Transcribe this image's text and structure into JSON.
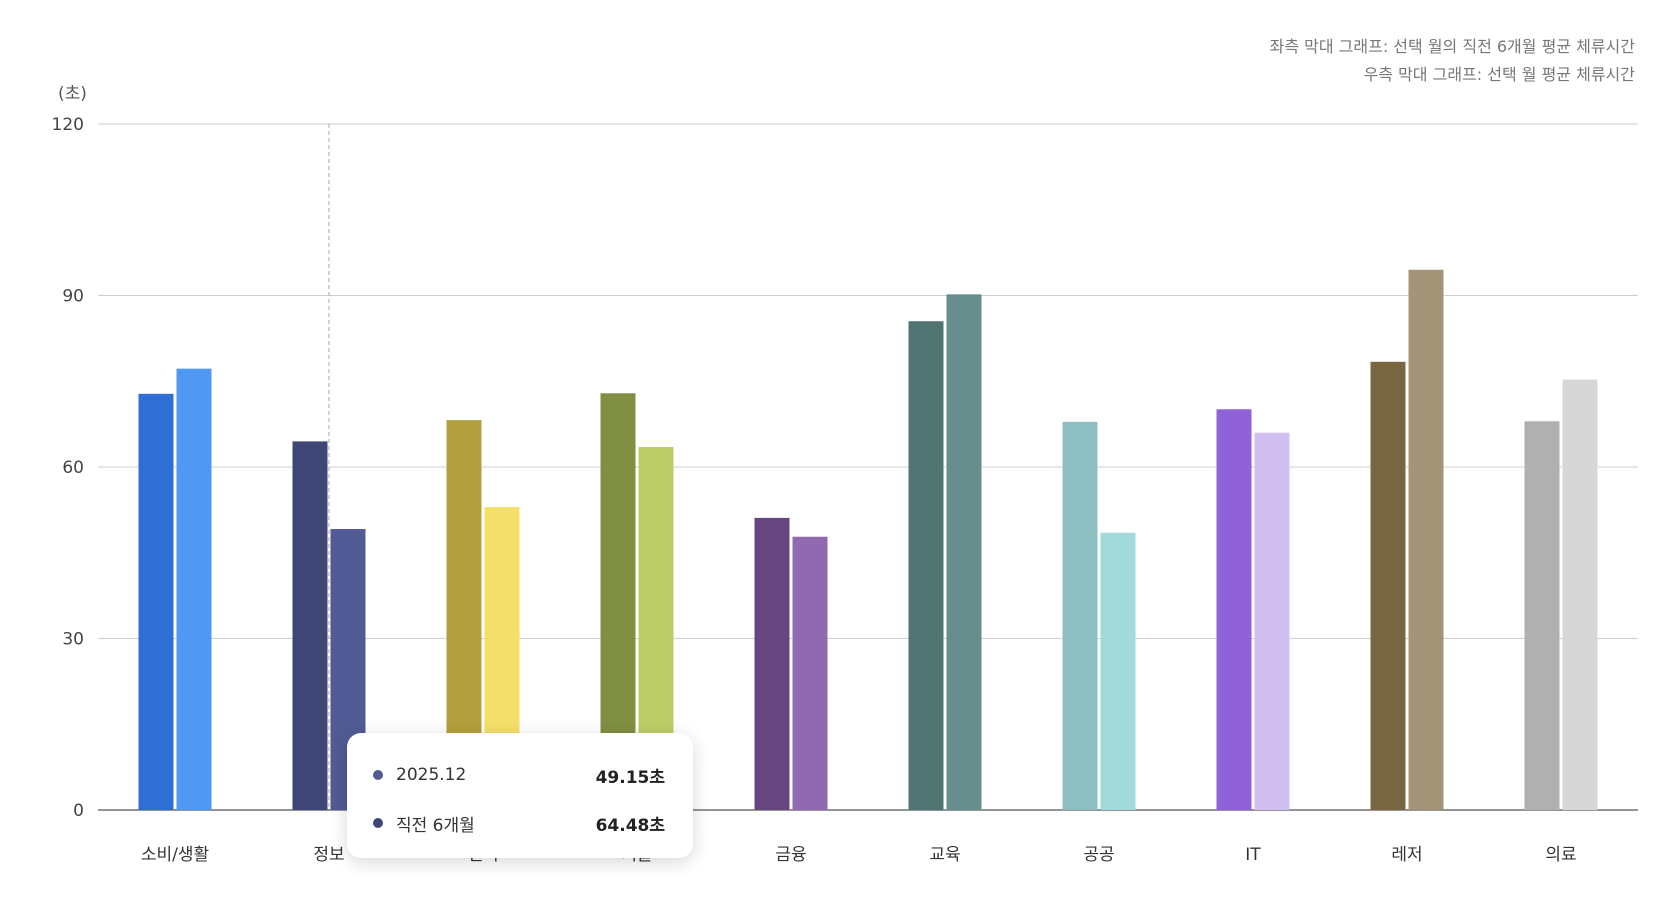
{
  "chart_data": {
    "type": "bar",
    "y_unit_label": "(초)",
    "ylim": [
      0,
      120
    ],
    "yticks": [
      0,
      30,
      60,
      90,
      120
    ],
    "grid": true,
    "categories": [
      "소비/생활",
      "정보",
      "엔터",
      "기술",
      "금융",
      "교육",
      "공공",
      "IT",
      "레저",
      "의료"
    ],
    "series": [
      {
        "name": "직전 6개월",
        "values": [
          72.8,
          64.48,
          68.2,
          72.9,
          51.1,
          85.5,
          67.9,
          70.1,
          78.4,
          68.0
        ],
        "colors": [
          "#2f6fd3",
          "#3e4675",
          "#b39f3e",
          "#808f42",
          "#65467e",
          "#4f7472",
          "#8fc0c1",
          "#9062da",
          "#786741",
          "#b0b0b0"
        ]
      },
      {
        "name": "2025.12",
        "values": [
          77.2,
          49.15,
          53.0,
          63.5,
          47.8,
          90.2,
          48.5,
          66.0,
          94.5,
          75.3
        ],
        "colors": [
          "#4f98f4",
          "#525b95",
          "#f4df6a",
          "#bccd68",
          "#9169b0",
          "#648d8b",
          "#a2d9da",
          "#d0bff0",
          "#a49477",
          "#d7d7d7"
        ]
      }
    ],
    "notes": [
      "좌측 막대 그래프: 선택 월의 직전 6개월 평균 체류시간",
      "우측 막대 그래프: 선택 월 평균 체류시간"
    ],
    "hover_category_index": 1
  },
  "tooltip": {
    "rows": [
      {
        "label": "2025.12",
        "value": "49.15초",
        "dot_color": "#525b95"
      },
      {
        "label": "직전 6개월",
        "value": "64.48초",
        "dot_color": "#3e4675"
      }
    ]
  }
}
